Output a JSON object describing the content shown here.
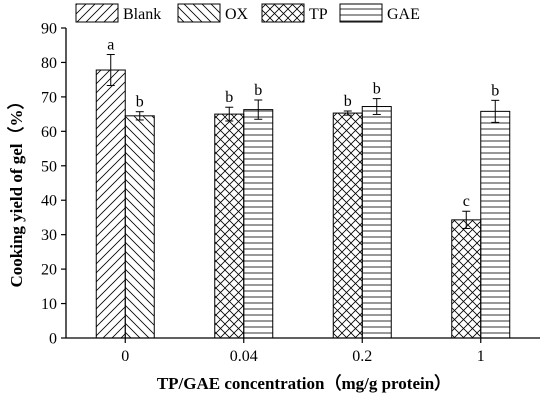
{
  "chart_data": {
    "type": "bar",
    "xlabel": "TP/GAE concentration（mg/g protein）",
    "ylabel": "Cooking yield of gel（%）",
    "ylim": [
      0,
      90
    ],
    "yticks": [
      0,
      10,
      20,
      30,
      40,
      50,
      60,
      70,
      80,
      90
    ],
    "categories": [
      "0",
      "0.04",
      "0.2",
      "1"
    ],
    "legend": {
      "placement": "top",
      "entries": [
        {
          "name": "Blank",
          "pattern": "diagonal-forward"
        },
        {
          "name": "OX",
          "pattern": "diagonal-back"
        },
        {
          "name": "TP",
          "pattern": "cross-hatch"
        },
        {
          "name": "GAE",
          "pattern": "horizontal"
        }
      ]
    },
    "bars": [
      {
        "category": "0",
        "series": "Blank",
        "value": 77.8,
        "error": 4.5,
        "label": "a"
      },
      {
        "category": "0",
        "series": "OX",
        "value": 64.5,
        "error": 1.2,
        "label": "b"
      },
      {
        "category": "0.04",
        "series": "TP",
        "value": 65.0,
        "error": 2.0,
        "label": "b"
      },
      {
        "category": "0.04",
        "series": "GAE",
        "value": 66.3,
        "error": 2.8,
        "label": "b"
      },
      {
        "category": "0.2",
        "series": "TP",
        "value": 65.3,
        "error": 0.6,
        "label": "b"
      },
      {
        "category": "0.2",
        "series": "GAE",
        "value": 67.2,
        "error": 2.3,
        "label": "b"
      },
      {
        "category": "1",
        "series": "TP",
        "value": 34.3,
        "error": 2.5,
        "label": "c"
      },
      {
        "category": "1",
        "series": "GAE",
        "value": 65.8,
        "error": 3.2,
        "label": "b"
      }
    ]
  }
}
